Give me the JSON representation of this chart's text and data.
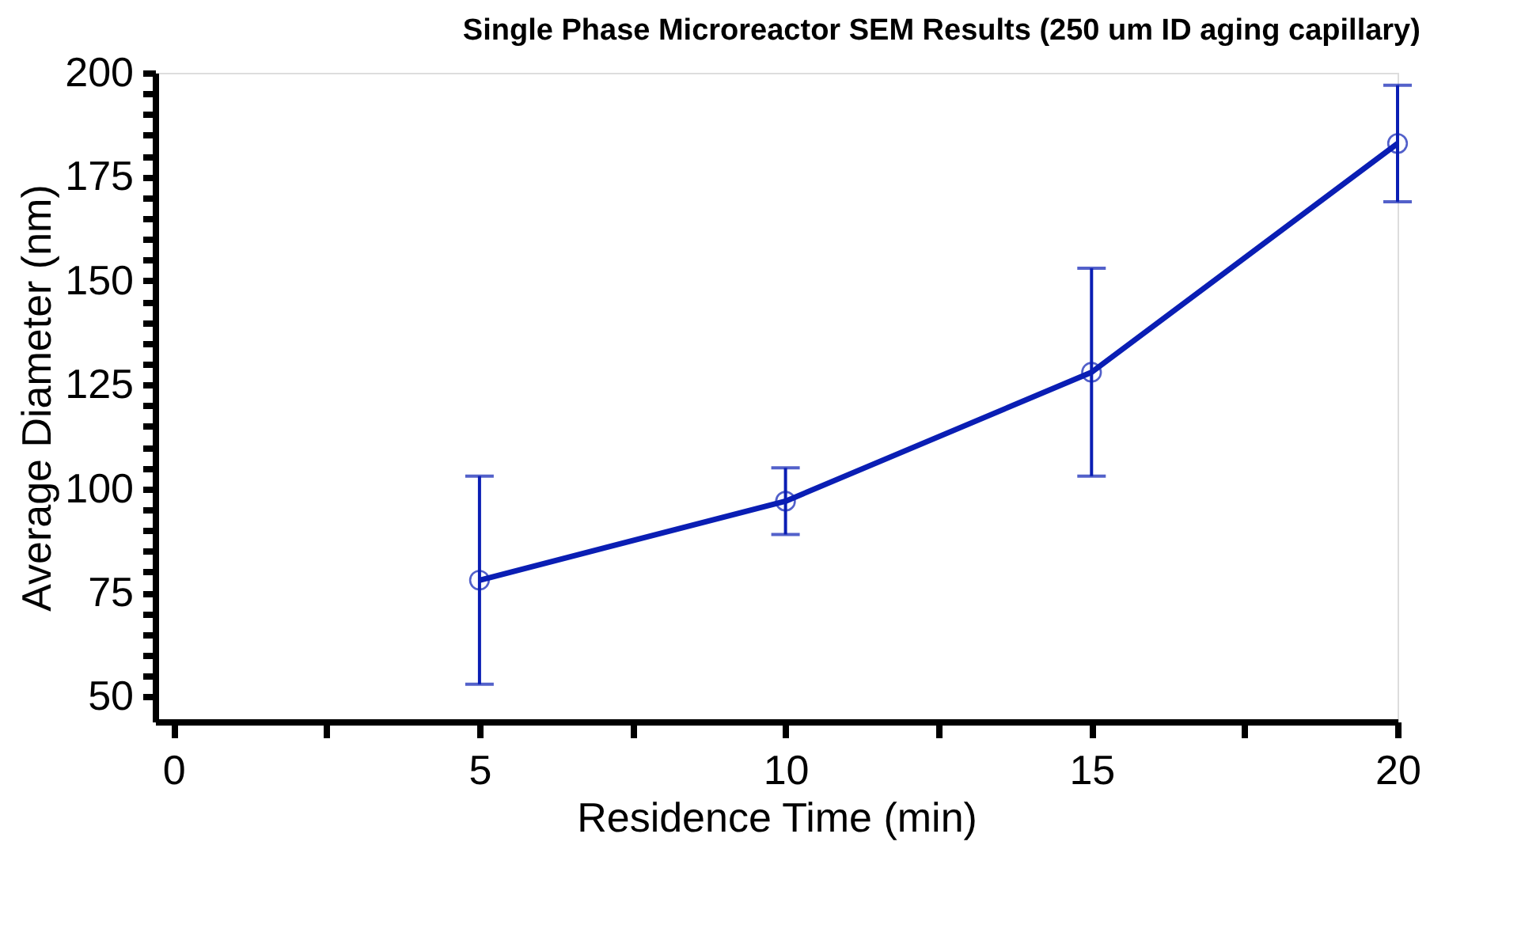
{
  "chart_data": {
    "type": "line",
    "title": "Single Phase Microreactor SEM Results (250 um ID aging capillary)",
    "xlabel": "Residence Time (min)",
    "ylabel": "Average Diameter (nm)",
    "x": [
      5,
      10,
      15,
      20
    ],
    "series": [
      {
        "color": "#0a1eb4",
        "values": [
          78,
          97,
          128,
          183
        ],
        "errors": [
          25,
          8,
          25,
          14
        ]
      }
    ],
    "xlim": [
      -0.3,
      20
    ],
    "xticks": [
      0,
      {
        "value": 2.5,
        "label": null
      },
      5,
      {
        "value": 7.5,
        "label": null
      },
      10,
      {
        "value": 12.5,
        "label": null
      },
      15,
      {
        "value": 17.5,
        "label": null
      },
      20
    ],
    "ylim": [
      44,
      200
    ],
    "yticks": [
      50,
      {
        "value": 55,
        "label": null
      },
      {
        "value": 60,
        "label": null
      },
      {
        "value": 65,
        "label": null
      },
      {
        "value": 70,
        "label": null
      },
      75,
      {
        "value": 80,
        "label": null
      },
      {
        "value": 85,
        "label": null
      },
      {
        "value": 90,
        "label": null
      },
      {
        "value": 95,
        "label": null
      },
      100,
      {
        "value": 105,
        "label": null
      },
      {
        "value": 110,
        "label": null
      },
      {
        "value": 115,
        "label": null
      },
      {
        "value": 120,
        "label": null
      },
      125,
      {
        "value": 130,
        "label": null
      },
      {
        "value": 135,
        "label": null
      },
      {
        "value": 140,
        "label": null
      },
      {
        "value": 145,
        "label": null
      },
      150,
      {
        "value": 155,
        "label": null
      },
      {
        "value": 160,
        "label": null
      },
      {
        "value": 165,
        "label": null
      },
      {
        "value": 170,
        "label": null
      },
      175,
      {
        "value": 180,
        "label": null
      },
      {
        "value": 185,
        "label": null
      },
      {
        "value": 190,
        "label": null
      },
      {
        "value": 195,
        "label": null
      },
      200
    ],
    "grid": false,
    "marker": "circle",
    "line_style": "solid"
  }
}
